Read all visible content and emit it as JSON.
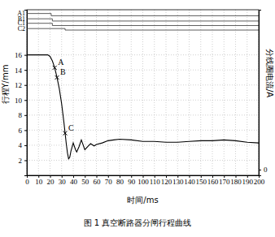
{
  "chart_data": {
    "type": "line",
    "title": "图 1   真空断路器分闸行程曲线",
    "x_label": "时间/ms",
    "y_label": "行程Y/mm",
    "y2_label": "分线圈电流/A",
    "xlim": [
      0,
      200
    ],
    "xticks": [
      0,
      10,
      20,
      30,
      40,
      50,
      60,
      70,
      80,
      90,
      100,
      110,
      120,
      130,
      140,
      150,
      160,
      170,
      180,
      190,
      200
    ],
    "ylim": [
      0,
      22
    ],
    "yticks": [
      2,
      4,
      6,
      8,
      10,
      12,
      14,
      16
    ],
    "y2lim": [
      -1,
      28
    ],
    "y2ticks": [
      0
    ],
    "grid": true,
    "series": [
      {
        "color": "#000000",
        "x": [
          0,
          5,
          10,
          15,
          18,
          20,
          22,
          24,
          26,
          28,
          30,
          32,
          33,
          34,
          35,
          36,
          37,
          38,
          40,
          42,
          43,
          45,
          47,
          50,
          53,
          55,
          58,
          60,
          65,
          70,
          75,
          80,
          90,
          100,
          110,
          120,
          130,
          140,
          150,
          160,
          170,
          180,
          190,
          200
        ],
        "values": [
          16,
          16,
          16,
          16,
          16,
          15.8,
          15.2,
          14.3,
          13,
          11.5,
          9.5,
          7,
          5.6,
          4.2,
          3,
          2.2,
          2.4,
          3.2,
          4.3,
          3.4,
          3.1,
          3.8,
          4.7,
          3.4,
          3.9,
          4.2,
          3.9,
          4.1,
          4.3,
          4.6,
          4.7,
          4.8,
          4.7,
          4.5,
          4.5,
          4.4,
          4.4,
          4.5,
          4.6,
          4.6,
          4.7,
          4.6,
          4.4,
          4.3
        ]
      },
      {
        "name": "A1",
        "color": "#333333",
        "x": [
          0,
          21,
          21,
          200
        ],
        "values": [
          21.5,
          21.5,
          21.2,
          21.2
        ]
      },
      {
        "name": "B1",
        "color": "#333333",
        "x": [
          0,
          22,
          22,
          200
        ],
        "values": [
          20.8,
          20.8,
          20.5,
          20.5
        ]
      },
      {
        "name": "C1",
        "color": "#333333",
        "x": [
          0,
          22,
          22,
          200
        ],
        "values": [
          20.2,
          20.2,
          19.9,
          19.9
        ]
      },
      {
        "name": "C2",
        "color": "#333333",
        "x": [
          0,
          33,
          33,
          200
        ],
        "values": [
          19.5,
          19.5,
          19.3,
          19.3
        ]
      }
    ],
    "annotations": [
      {
        "text": "A",
        "x": 24,
        "y": 14.3
      },
      {
        "text": "B",
        "x": 26,
        "y": 13
      },
      {
        "text": "C",
        "x": 33,
        "y": 5.6
      }
    ]
  }
}
